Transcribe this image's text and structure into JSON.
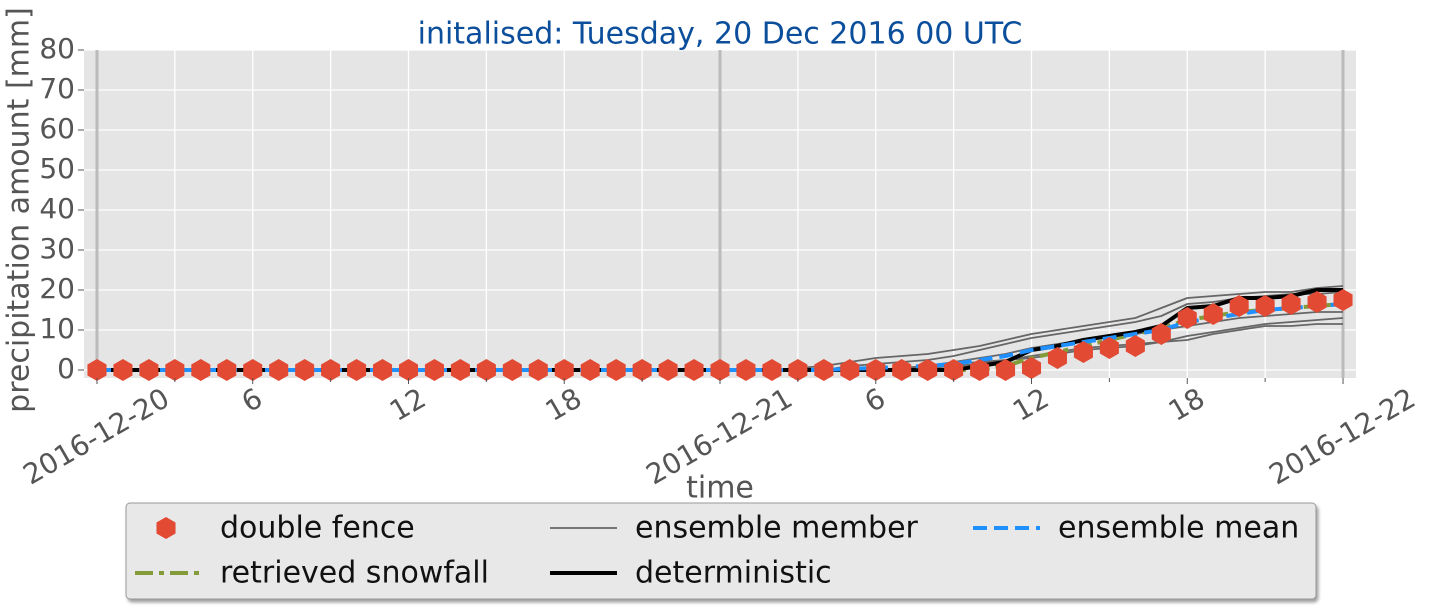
{
  "chart_data": {
    "type": "line",
    "title": "initalised: Tuesday, 20 Dec 2016 00 UTC",
    "x_label": "time",
    "y_label": "precipitation amount [mm]",
    "x": [
      "2016-12-20T00:00",
      "2016-12-20T01:00",
      "2016-12-20T02:00",
      "2016-12-20T03:00",
      "2016-12-20T04:00",
      "2016-12-20T05:00",
      "2016-12-20T06:00",
      "2016-12-20T07:00",
      "2016-12-20T08:00",
      "2016-12-20T09:00",
      "2016-12-20T10:00",
      "2016-12-20T11:00",
      "2016-12-20T12:00",
      "2016-12-20T13:00",
      "2016-12-20T14:00",
      "2016-12-20T15:00",
      "2016-12-20T16:00",
      "2016-12-20T17:00",
      "2016-12-20T18:00",
      "2016-12-20T19:00",
      "2016-12-20T20:00",
      "2016-12-20T21:00",
      "2016-12-20T22:00",
      "2016-12-20T23:00",
      "2016-12-21T00:00",
      "2016-12-21T01:00",
      "2016-12-21T02:00",
      "2016-12-21T03:00",
      "2016-12-21T04:00",
      "2016-12-21T05:00",
      "2016-12-21T06:00",
      "2016-12-21T07:00",
      "2016-12-21T08:00",
      "2016-12-21T09:00",
      "2016-12-21T10:00",
      "2016-12-21T11:00",
      "2016-12-21T12:00",
      "2016-12-21T13:00",
      "2016-12-21T14:00",
      "2016-12-21T15:00",
      "2016-12-21T16:00",
      "2016-12-21T17:00",
      "2016-12-21T18:00",
      "2016-12-21T19:00",
      "2016-12-21T20:00",
      "2016-12-21T21:00",
      "2016-12-21T22:00",
      "2016-12-21T23:00",
      "2016-12-22T00:00"
    ],
    "xlim": [
      "2016-12-19T23:30",
      "2016-12-22T00:30"
    ],
    "xticks": [
      {
        "value": "2016-12-20T00:00",
        "label": "2016-12-20"
      },
      {
        "value": "2016-12-20T06:00",
        "label": "6"
      },
      {
        "value": "2016-12-20T12:00",
        "label": "12"
      },
      {
        "value": "2016-12-20T18:00",
        "label": "18"
      },
      {
        "value": "2016-12-21T00:00",
        "label": "2016-12-21"
      },
      {
        "value": "2016-12-21T06:00",
        "label": "6"
      },
      {
        "value": "2016-12-21T12:00",
        "label": "12"
      },
      {
        "value": "2016-12-21T18:00",
        "label": "18"
      },
      {
        "value": "2016-12-22T00:00",
        "label": "2016-12-22"
      }
    ],
    "x_minor_ticks": [
      "2016-12-20T03:00",
      "2016-12-20T09:00",
      "2016-12-20T15:00",
      "2016-12-20T21:00",
      "2016-12-21T03:00",
      "2016-12-21T09:00",
      "2016-12-21T15:00",
      "2016-12-21T21:00"
    ],
    "ylim": [
      -2,
      80
    ],
    "yticks": [
      0,
      10,
      20,
      30,
      40,
      50,
      60,
      70,
      80
    ],
    "grid": true,
    "series": [
      {
        "name": "double fence",
        "color": "#e24a33",
        "marker": "hexagon",
        "values": [
          0,
          0,
          0,
          0,
          0,
          0,
          0,
          0,
          0,
          0,
          0,
          0,
          0,
          0,
          0,
          0,
          0,
          0,
          0,
          0,
          0,
          0,
          0,
          0,
          0,
          0,
          0,
          0,
          0,
          0,
          0,
          0,
          0,
          0,
          0,
          0,
          0.5,
          3,
          4.5,
          5.5,
          6,
          9,
          13,
          14,
          16,
          16,
          16.5,
          17,
          17.5
        ]
      },
      {
        "name": "retrieved snowfall",
        "color": "#839b38",
        "dash": "dashdot",
        "values": [
          null,
          null,
          null,
          null,
          null,
          null,
          null,
          null,
          null,
          null,
          null,
          null,
          null,
          null,
          null,
          null,
          null,
          null,
          null,
          null,
          null,
          null,
          null,
          null,
          null,
          null,
          null,
          null,
          null,
          null,
          null,
          0,
          0,
          0,
          0,
          1,
          3,
          4.5,
          6,
          7.5,
          9,
          10.5,
          12.5,
          13.5,
          14.5,
          15,
          15.5,
          16,
          16.5
        ]
      },
      {
        "name": "ensemble member",
        "color": "#666666",
        "members": [
          [
            0,
            0,
            0,
            0,
            0,
            0,
            0,
            0,
            0,
            0,
            0,
            0,
            0,
            0,
            0,
            0,
            0,
            0,
            0,
            0,
            0,
            0,
            0,
            0,
            0,
            0,
            0,
            0.5,
            1,
            2,
            3,
            3.5,
            4,
            5,
            6,
            7.5,
            9,
            10,
            11,
            12,
            13,
            15.5,
            18,
            18.5,
            19,
            19.5,
            19.5,
            20.5,
            21
          ],
          [
            0,
            0,
            0,
            0,
            0,
            0,
            0,
            0,
            0,
            0,
            0,
            0,
            0,
            0,
            0,
            0,
            0,
            0,
            0,
            0,
            0,
            0,
            0,
            0,
            0,
            0,
            0,
            0,
            0,
            1,
            1.5,
            2,
            2.5,
            3.5,
            5,
            6.5,
            8,
            9,
            10,
            11,
            12,
            13.5,
            16.5,
            17,
            18,
            18.5,
            19,
            19,
            19.5
          ],
          [
            0,
            0,
            0,
            0,
            0,
            0,
            0,
            0,
            0,
            0,
            0,
            0,
            0,
            0,
            0,
            0,
            0,
            0,
            0,
            0,
            0,
            0,
            0,
            0,
            0,
            0,
            0,
            0,
            0,
            0,
            0,
            0.5,
            1,
            1.5,
            2,
            2.5,
            3.5,
            4.5,
            5.5,
            6,
            6.5,
            7,
            7.5,
            9,
            10,
            11,
            11,
            11.5,
            11.5
          ],
          [
            0,
            0,
            0,
            0,
            0,
            0,
            0,
            0,
            0,
            0,
            0,
            0,
            0,
            0,
            0,
            0,
            0,
            0,
            0,
            0,
            0,
            0,
            0,
            0,
            0,
            0,
            0,
            0,
            0,
            0,
            0,
            0.5,
            1,
            2,
            3,
            4,
            5.5,
            6.5,
            7.5,
            8.5,
            9,
            10,
            11,
            12,
            13,
            13.5,
            14,
            14.5,
            14.5
          ],
          [
            0,
            0,
            0,
            0,
            0,
            0,
            0,
            0,
            0,
            0,
            0,
            0,
            0,
            0,
            0,
            0,
            0,
            0,
            0,
            0,
            0,
            0,
            0,
            0,
            0,
            0,
            0,
            0,
            0,
            0,
            0,
            0,
            0.5,
            1,
            1.5,
            2.5,
            3,
            4,
            5,
            5.5,
            6,
            7,
            8.5,
            9.5,
            10.5,
            11.5,
            12,
            12.5,
            13
          ]
        ]
      },
      {
        "name": "deterministic",
        "color": "#000000",
        "values": [
          0,
          0,
          0,
          0,
          0,
          0,
          0,
          0,
          0,
          0,
          0,
          0,
          0,
          0,
          0,
          0,
          0,
          0,
          0,
          0,
          0,
          0,
          0,
          0,
          0,
          0,
          0,
          0,
          0,
          0,
          0,
          0,
          0,
          0,
          1,
          2,
          5,
          6,
          7.5,
          8.5,
          9.5,
          11,
          15.5,
          16,
          18,
          18,
          18.5,
          20,
          20
        ]
      },
      {
        "name": "ensemble mean",
        "color": "#1e90ff",
        "dash": "dashed",
        "values": [
          0,
          0,
          0,
          0,
          0,
          0,
          0,
          0,
          0,
          0,
          0,
          0,
          0,
          0,
          0,
          0,
          0,
          0,
          0,
          0,
          0,
          0,
          0,
          0,
          0,
          0,
          0,
          0,
          0,
          0.3,
          0.5,
          0.8,
          1,
          1.5,
          2.5,
          3.5,
          5,
          6,
          7,
          8,
          9,
          10,
          12,
          13,
          14,
          15,
          15.5,
          16,
          16.5
        ]
      }
    ]
  }
}
